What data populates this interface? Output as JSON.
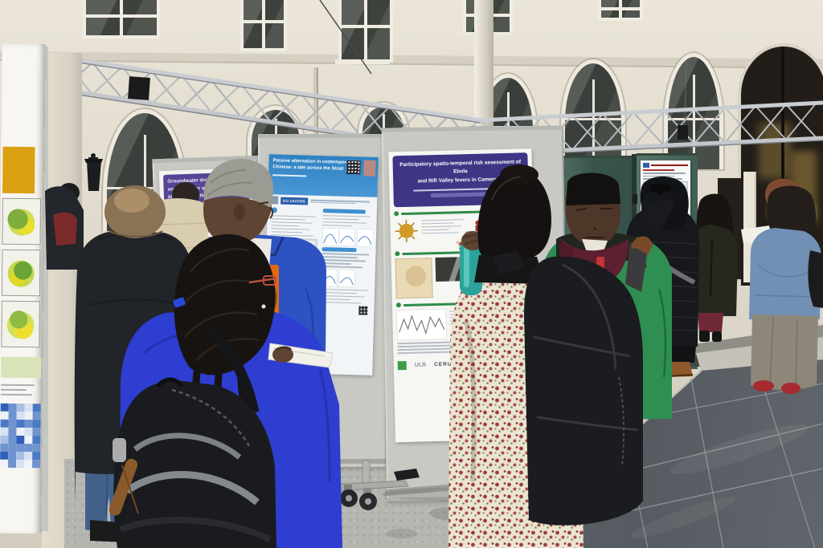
{
  "scene": {
    "type": "photograph",
    "setting": "Indoor courtyard poster session at an academic conference"
  },
  "palette": {
    "wall": "#e6e1d3",
    "truss": "#bfc3c7",
    "board_grey": "#c9c9c4",
    "green_panel": "#46635a",
    "floor_tile": "#5a6065",
    "floor_light": "#b5b6b0",
    "ebola_header": "#3e3685",
    "chinese_header": "#2f81c2",
    "kuleuven_blue": "#2d5faa",
    "groundwater_header": "#564594"
  },
  "posters": {
    "left_partial": {
      "label": "curled poster with choropleth maps and blue heatmap"
    },
    "groundwater": {
      "header_lines": [
        "Groundwater drought im...",
        "on both water quantity...",
        "adaptive solutions to m...",
        "and economic impacts."
      ],
      "subtitle_lines": [
        "Groundwater Drought and...",
        "Assessment and Response..."
      ]
    },
    "chinese": {
      "title_line1": "Passive alternation in contemporary",
      "title_line2": "Chinese: a tale across the Strait",
      "logo_text": "KU LEUVEN"
    },
    "ebola": {
      "title_line1": "Participatory spatio-temporal risk assessment of Ebola",
      "title_line2": "and Rift Valley fevers in Cameroon",
      "footer_logo_left": "ULB",
      "footer_logo_right": "CERUNA"
    },
    "green_board_poster": {
      "label": "small poster with red title and map on green panel"
    }
  },
  "people": [
    {
      "id": "man-black-jacket",
      "note": "balding man, black jacket, jeans"
    },
    {
      "id": "woman-blue-coat",
      "note": "woman with braids, red glasses, cobalt coat, black backpack"
    },
    {
      "id": "man-blue-jacket",
      "note": "grey-haired man in royal blue jacket holding white papers"
    },
    {
      "id": "woman-floral-dress",
      "note": "woman in cream floral dress with teal bottle and black backpack"
    },
    {
      "id": "man-green-jacket",
      "note": "man in green jacket, maroon scarf, red lanyard, star sneaker"
    },
    {
      "id": "person-black-puffer",
      "note": "hooded person in black puffer photographing a poster, brown boots"
    },
    {
      "id": "woman-dark-coat",
      "note": "woman in dark coat, burgundy trousers, black boots"
    },
    {
      "id": "person-red-hair",
      "note": "auburn-haired person holding notes"
    },
    {
      "id": "woman-blue-sweater",
      "note": "woman in blue sweater, grey wide trousers, red shoes"
    },
    {
      "id": "background-visitors",
      "note": "partially visible visitors at left"
    }
  ]
}
